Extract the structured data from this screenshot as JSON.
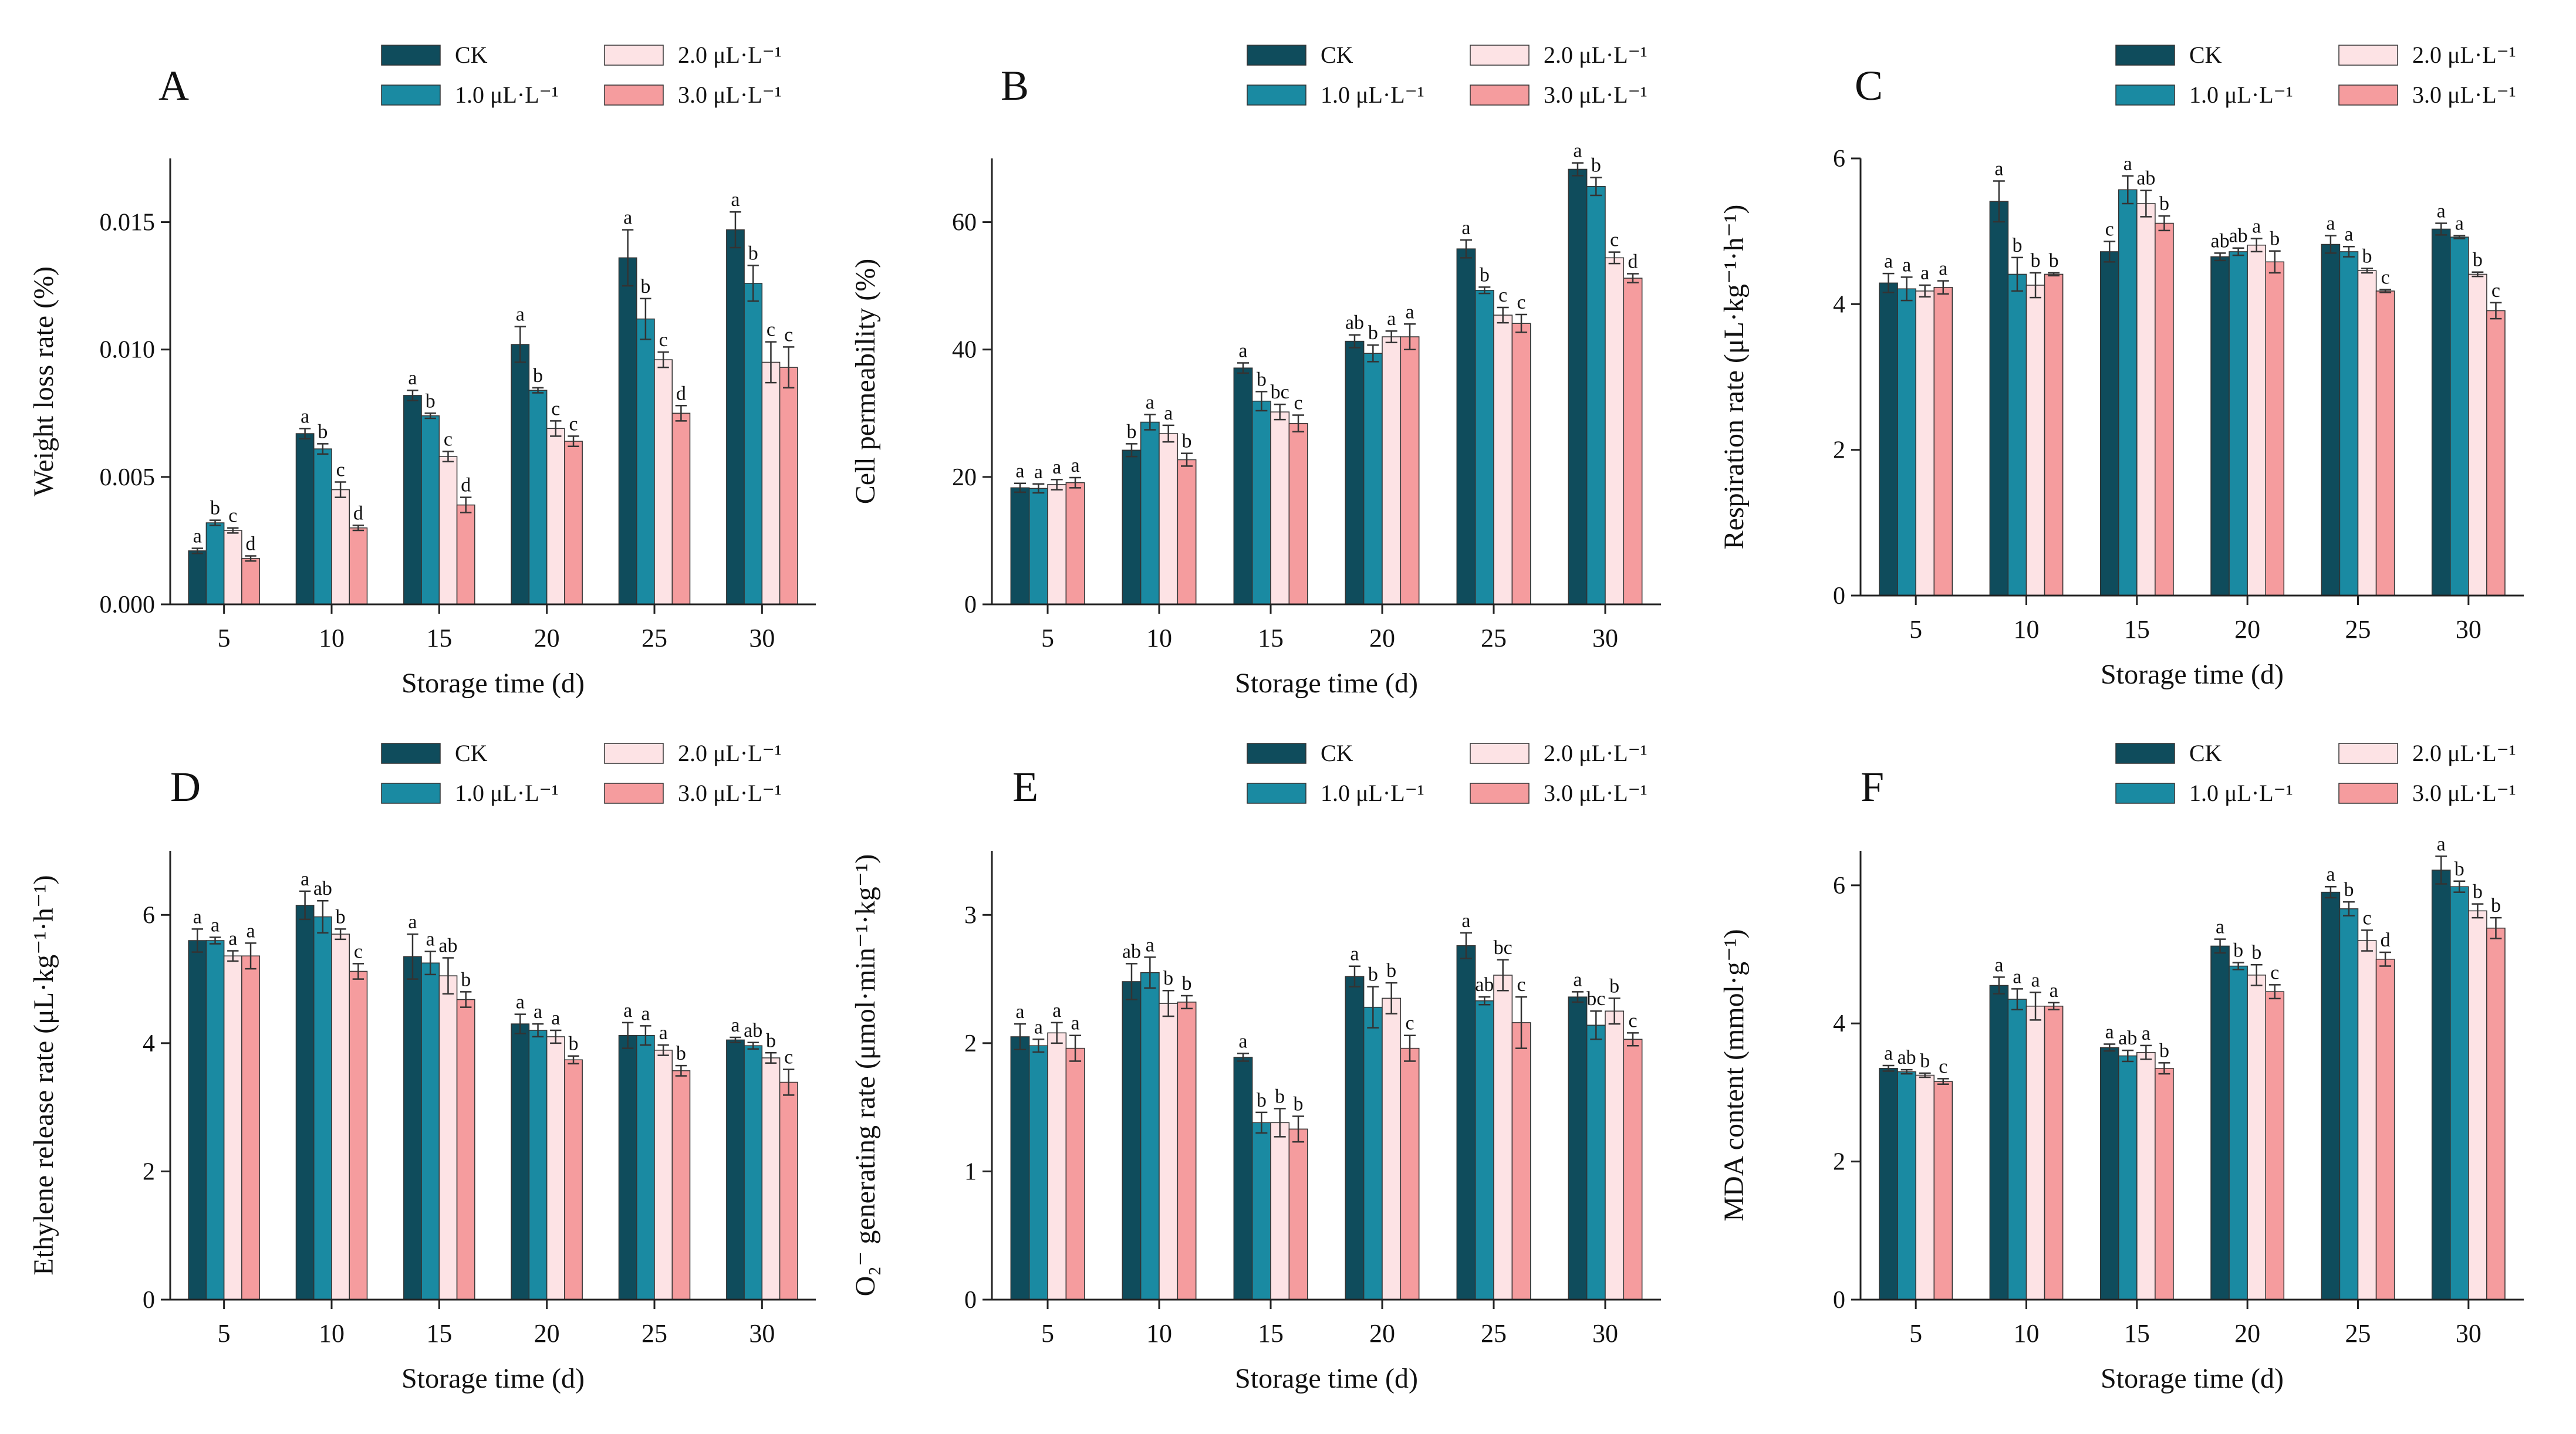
{
  "colors": {
    "CK": "#0f4c5c",
    "1.0": "#1a8aa2",
    "2.0": "#fde3e5",
    "3.0": "#f59c9e"
  },
  "legend": {
    "labels": [
      "CK",
      "1.0 μL·L⁻¹",
      "2.0 μL·L⁻¹",
      "3.0 μL·L⁻¹"
    ]
  },
  "chart_data": [
    {
      "panel": "A",
      "type": "bar",
      "xlabel": "Storage time (d)",
      "ylabel": "Weight loss rate (%)",
      "categories": [
        "5",
        "10",
        "15",
        "20",
        "25",
        "30"
      ],
      "ylim": [
        0,
        0.0175
      ],
      "yticks": [
        0,
        0.005,
        0.01,
        0.015
      ],
      "ytick_labels": [
        "0.000",
        "0.005",
        "0.010",
        "0.015"
      ],
      "series": [
        {
          "name": "CK",
          "values": [
            0.0021,
            0.0067,
            0.0082,
            0.0102,
            0.0136,
            0.0147
          ],
          "errors": [
            0.0001,
            0.0002,
            0.0002,
            0.0007,
            0.0011,
            0.0007
          ],
          "letters": [
            "a",
            "a",
            "a",
            "a",
            "a",
            "a"
          ]
        },
        {
          "name": "1.0 μL·L⁻¹",
          "values": [
            0.0032,
            0.0061,
            0.0074,
            0.0084,
            0.0112,
            0.0126
          ],
          "errors": [
            0.0001,
            0.0002,
            0.0001,
            0.0001,
            0.0008,
            0.0007
          ],
          "letters": [
            "b",
            "b",
            "b",
            "b",
            "b",
            "b"
          ]
        },
        {
          "name": "2.0 μL·L⁻¹",
          "values": [
            0.0029,
            0.0045,
            0.0058,
            0.0069,
            0.0096,
            0.0095
          ],
          "errors": [
            0.0001,
            0.0003,
            0.0002,
            0.0003,
            0.0003,
            0.0008
          ],
          "letters": [
            "c",
            "c",
            "c",
            "c",
            "c",
            "c"
          ]
        },
        {
          "name": "3.0 μL·L⁻¹",
          "values": [
            0.0018,
            0.003,
            0.0039,
            0.0064,
            0.0075,
            0.0093
          ],
          "errors": [
            0.0001,
            0.0001,
            0.0003,
            0.0002,
            0.0003,
            0.0008
          ],
          "letters": [
            "d",
            "d",
            "d",
            "c",
            "d",
            "c"
          ]
        }
      ]
    },
    {
      "panel": "B",
      "type": "bar",
      "xlabel": "Storage time (d)",
      "ylabel": "Cell permeability (%)",
      "categories": [
        "5",
        "10",
        "15",
        "20",
        "25",
        "30"
      ],
      "ylim": [
        0,
        70
      ],
      "yticks": [
        0,
        20,
        40,
        60
      ],
      "ytick_labels": [
        "0",
        "20",
        "40",
        "60"
      ],
      "series": [
        {
          "name": "CK",
          "values": [
            18.3,
            24.2,
            37.1,
            41.3,
            55.8,
            68.3
          ],
          "errors": [
            0.7,
            1.0,
            0.8,
            1.0,
            1.4,
            1.0
          ],
          "letters": [
            "a",
            "b",
            "a",
            "ab",
            "a",
            "a"
          ]
        },
        {
          "name": "1.0 μL·L⁻¹",
          "values": [
            18.2,
            28.6,
            31.9,
            39.4,
            49.3,
            65.6
          ],
          "errors": [
            0.7,
            1.2,
            1.5,
            1.3,
            0.5,
            1.4
          ],
          "letters": [
            "a",
            "a",
            "b",
            "b",
            "b",
            "b"
          ]
        },
        {
          "name": "2.0 μL·L⁻¹",
          "values": [
            18.8,
            26.8,
            30.2,
            42.0,
            45.4,
            54.4
          ],
          "errors": [
            0.8,
            1.3,
            1.2,
            0.9,
            1.2,
            0.9
          ],
          "letters": [
            "a",
            "a",
            "bc",
            "a",
            "c",
            "c"
          ]
        },
        {
          "name": "3.0 μL·L⁻¹",
          "values": [
            19.1,
            22.7,
            28.4,
            42.0,
            44.1,
            51.2
          ],
          "errors": [
            0.8,
            1.0,
            1.3,
            2.0,
            1.4,
            0.7
          ],
          "letters": [
            "a",
            "b",
            "c",
            "a",
            "c",
            "d"
          ]
        }
      ]
    },
    {
      "panel": "C",
      "type": "bar",
      "xlabel": "Storage time (d)",
      "ylabel": "Respiration rate (μL·kg⁻¹·h⁻¹)",
      "categories": [
        "5",
        "10",
        "15",
        "20",
        "25",
        "30"
      ],
      "ylim": [
        0,
        6
      ],
      "yticks": [
        0,
        2,
        4,
        6
      ],
      "ytick_labels": [
        "0",
        "2",
        "4",
        "6"
      ],
      "series": [
        {
          "name": "CK",
          "values": [
            4.29,
            5.41,
            4.72,
            4.65,
            4.82,
            5.03
          ],
          "errors": [
            0.13,
            0.28,
            0.14,
            0.05,
            0.12,
            0.08
          ],
          "letters": [
            "a",
            "a",
            "c",
            "ab",
            "a",
            "a"
          ]
        },
        {
          "name": "1.0 μL·L⁻¹",
          "values": [
            4.21,
            4.41,
            5.57,
            4.72,
            4.72,
            4.92
          ],
          "errors": [
            0.16,
            0.23,
            0.19,
            0.05,
            0.07,
            0.02
          ],
          "letters": [
            "a",
            "b",
            "a",
            "ab",
            "a",
            "a"
          ]
        },
        {
          "name": "2.0 μL·L⁻¹",
          "values": [
            4.18,
            4.26,
            5.38,
            4.81,
            4.46,
            4.41
          ],
          "errors": [
            0.08,
            0.17,
            0.18,
            0.09,
            0.03,
            0.03
          ],
          "letters": [
            "a",
            "b",
            "ab",
            "a",
            "b",
            "b"
          ]
        },
        {
          "name": "3.0 μL·L⁻¹",
          "values": [
            4.23,
            4.41,
            5.11,
            4.58,
            4.18,
            3.91
          ],
          "errors": [
            0.09,
            0.02,
            0.1,
            0.15,
            0.02,
            0.11
          ],
          "letters": [
            "a",
            "b",
            "b",
            "b",
            "c",
            "c"
          ]
        }
      ]
    },
    {
      "panel": "D",
      "type": "bar",
      "xlabel": "Storage time (d)",
      "ylabel": "Ethylene release rate (μL·kg⁻¹·h⁻¹)",
      "categories": [
        "5",
        "10",
        "15",
        "20",
        "25",
        "30"
      ],
      "ylim": [
        0,
        7
      ],
      "yticks": [
        0,
        2,
        4,
        6
      ],
      "ytick_labels": [
        "0",
        "2",
        "4",
        "6"
      ],
      "series": [
        {
          "name": "CK",
          "values": [
            5.6,
            6.15,
            5.35,
            4.3,
            4.12,
            4.05
          ],
          "errors": [
            0.18,
            0.22,
            0.35,
            0.15,
            0.2,
            0.04
          ],
          "letters": [
            "a",
            "a",
            "a",
            "a",
            "a",
            "a"
          ]
        },
        {
          "name": "1.0 μL·L⁻¹",
          "values": [
            5.6,
            5.97,
            5.25,
            4.2,
            4.12,
            3.96
          ],
          "errors": [
            0.05,
            0.25,
            0.18,
            0.1,
            0.15,
            0.05
          ],
          "letters": [
            "a",
            "ab",
            "a",
            "a",
            "a",
            "ab"
          ]
        },
        {
          "name": "2.0 μL·L⁻¹",
          "values": [
            5.36,
            5.7,
            5.05,
            4.1,
            3.89,
            3.77
          ],
          "errors": [
            0.08,
            0.08,
            0.28,
            0.1,
            0.08,
            0.08
          ],
          "letters": [
            "a",
            "b",
            "ab",
            "a",
            "a",
            "b"
          ]
        },
        {
          "name": "3.0 μL·L⁻¹",
          "values": [
            5.36,
            5.12,
            4.68,
            3.74,
            3.57,
            3.39
          ],
          "errors": [
            0.2,
            0.12,
            0.12,
            0.06,
            0.08,
            0.2
          ],
          "letters": [
            "a",
            "c",
            "b",
            "b",
            "b",
            "c"
          ]
        }
      ]
    },
    {
      "panel": "E",
      "type": "bar",
      "xlabel": "Storage time (d)",
      "ylabel": "O₂⁻ generating rate (μmol·min⁻¹·kg⁻¹)",
      "categories": [
        "5",
        "10",
        "15",
        "20",
        "25",
        "30"
      ],
      "ylim": [
        0,
        3.5
      ],
      "yticks": [
        0,
        1,
        2,
        3
      ],
      "ytick_labels": [
        "0",
        "1",
        "2",
        "3"
      ],
      "series": [
        {
          "name": "CK",
          "values": [
            2.05,
            2.48,
            1.89,
            2.52,
            2.76,
            2.36
          ],
          "errors": [
            0.1,
            0.14,
            0.03,
            0.08,
            0.1,
            0.04
          ],
          "letters": [
            "a",
            "ab",
            "a",
            "a",
            "a",
            "a"
          ]
        },
        {
          "name": "1.0 μL·L⁻¹",
          "values": [
            1.98,
            2.55,
            1.38,
            2.28,
            2.33,
            2.14
          ],
          "errors": [
            0.05,
            0.12,
            0.08,
            0.16,
            0.03,
            0.11
          ],
          "letters": [
            "a",
            "a",
            "b",
            "b",
            "ab",
            "bc"
          ]
        },
        {
          "name": "2.0 μL·L⁻¹",
          "values": [
            2.08,
            2.31,
            1.38,
            2.35,
            2.53,
            2.25
          ],
          "errors": [
            0.08,
            0.1,
            0.11,
            0.12,
            0.12,
            0.1
          ],
          "letters": [
            "a",
            "b",
            "b",
            "b",
            "bc",
            "b"
          ]
        },
        {
          "name": "3.0 μL·L⁻¹",
          "values": [
            1.96,
            2.32,
            1.33,
            1.96,
            2.16,
            2.03
          ],
          "errors": [
            0.1,
            0.05,
            0.1,
            0.1,
            0.2,
            0.05
          ],
          "letters": [
            "a",
            "b",
            "b",
            "c",
            "c",
            "c"
          ]
        }
      ]
    },
    {
      "panel": "F",
      "type": "bar",
      "xlabel": "Storage time (d)",
      "ylabel": "MDA content (mmol·g⁻¹)",
      "categories": [
        "5",
        "10",
        "15",
        "20",
        "25",
        "30"
      ],
      "ylim": [
        0,
        6.5
      ],
      "yticks": [
        0,
        2,
        4,
        6
      ],
      "ytick_labels": [
        "0",
        "2",
        "4",
        "6"
      ],
      "series": [
        {
          "name": "CK",
          "values": [
            3.35,
            4.55,
            3.65,
            5.12,
            5.9,
            6.22
          ],
          "errors": [
            0.04,
            0.12,
            0.05,
            0.1,
            0.08,
            0.2
          ],
          "letters": [
            "a",
            "a",
            "a",
            "a",
            "a",
            "a"
          ]
        },
        {
          "name": "1.0 μL·L⁻¹",
          "values": [
            3.3,
            4.35,
            3.53,
            4.83,
            5.66,
            5.98
          ],
          "errors": [
            0.03,
            0.15,
            0.08,
            0.05,
            0.1,
            0.08
          ],
          "letters": [
            "ab",
            "a",
            "ab",
            "b",
            "b",
            "b"
          ]
        },
        {
          "name": "2.0 μL·L⁻¹",
          "values": [
            3.25,
            4.25,
            3.58,
            4.7,
            5.2,
            5.63
          ],
          "errors": [
            0.03,
            0.2,
            0.1,
            0.15,
            0.15,
            0.1
          ],
          "letters": [
            "b",
            "a",
            "a",
            "b",
            "c",
            "b"
          ]
        },
        {
          "name": "3.0 μL·L⁻¹",
          "values": [
            3.16,
            4.25,
            3.35,
            4.46,
            4.93,
            5.38
          ],
          "errors": [
            0.04,
            0.05,
            0.08,
            0.1,
            0.1,
            0.15
          ],
          "letters": [
            "c",
            "a",
            "b",
            "c",
            "d",
            "b"
          ]
        }
      ]
    }
  ]
}
